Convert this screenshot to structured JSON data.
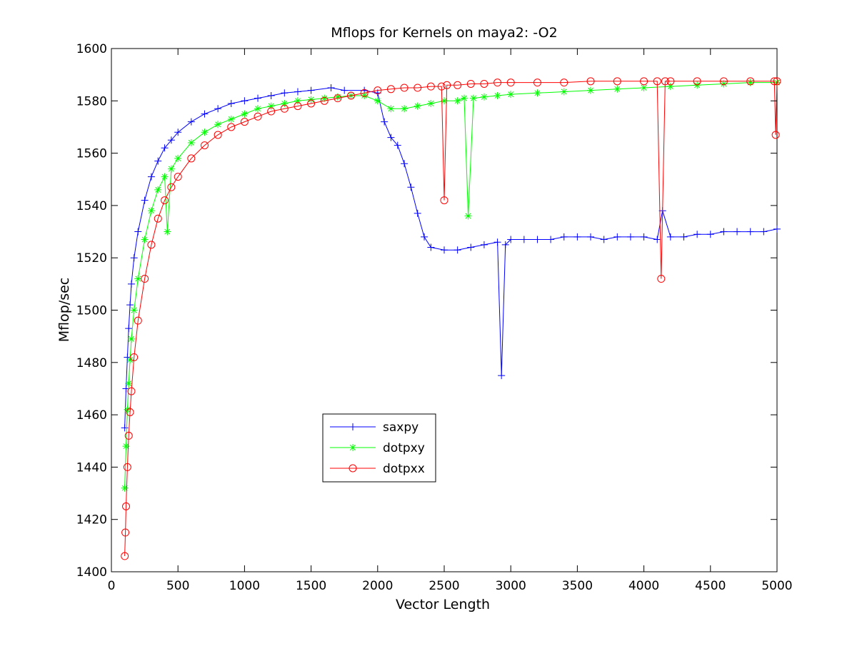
{
  "chart_data": {
    "type": "line",
    "title": "Mflops for Kernels on maya2: -O2",
    "xlabel": "Vector Length",
    "ylabel": "Mflop/sec",
    "xlim": [
      0,
      5000
    ],
    "ylim": [
      1400,
      1600
    ],
    "xticks": [
      0,
      500,
      1000,
      1500,
      2000,
      2500,
      3000,
      3500,
      4000,
      4500,
      5000
    ],
    "yticks": [
      1400,
      1420,
      1440,
      1460,
      1480,
      1500,
      1520,
      1540,
      1560,
      1580,
      1600
    ],
    "xtick_labels": [
      "0",
      "500",
      "1000",
      "1500",
      "2000",
      "2500",
      "3000",
      "3500",
      "4000",
      "4500",
      "5000"
    ],
    "ytick_labels": [
      "1400",
      "1420",
      "1440",
      "1460",
      "1480",
      "1500",
      "1520",
      "1540",
      "1560",
      "1580",
      "1600"
    ],
    "grid": false,
    "legend_position": "lower-middle-left",
    "series": [
      {
        "name": "saxpy",
        "color": "#0000ff",
        "marker": "plus",
        "x": [
          100,
          110,
          120,
          130,
          140,
          150,
          170,
          200,
          250,
          300,
          350,
          400,
          450,
          500,
          600,
          700,
          800,
          900,
          1000,
          1100,
          1200,
          1300,
          1400,
          1500,
          1650,
          1750,
          1900,
          2000,
          2050,
          2100,
          2150,
          2200,
          2250,
          2300,
          2350,
          2400,
          2500,
          2600,
          2700,
          2800,
          2900,
          2930,
          2960,
          3000,
          3100,
          3200,
          3300,
          3400,
          3500,
          3600,
          3700,
          3800,
          3900,
          4000,
          4100,
          4140,
          4200,
          4300,
          4400,
          4500,
          4600,
          4700,
          4800,
          4900,
          5000
        ],
        "y": [
          1455,
          1470,
          1482,
          1493,
          1502,
          1510,
          1520,
          1530,
          1542,
          1551,
          1557,
          1562,
          1565,
          1568,
          1572,
          1575,
          1577,
          1579,
          1580,
          1581,
          1582,
          1583,
          1583.5,
          1584,
          1585,
          1584,
          1584,
          1583,
          1572,
          1566,
          1563,
          1556,
          1547,
          1537,
          1528,
          1524,
          1523,
          1523,
          1524,
          1525,
          1526,
          1475,
          1525,
          1527,
          1527,
          1527,
          1527,
          1528,
          1528,
          1528,
          1527,
          1528,
          1528,
          1528,
          1527,
          1538,
          1528,
          1528,
          1529,
          1529,
          1530,
          1530,
          1530,
          1530,
          1531
        ]
      },
      {
        "name": "dotpxy",
        "color": "#00ff00",
        "marker": "asterisk",
        "x": [
          100,
          110,
          120,
          130,
          140,
          150,
          170,
          200,
          250,
          300,
          350,
          400,
          420,
          450,
          500,
          600,
          700,
          800,
          900,
          1000,
          1100,
          1200,
          1300,
          1400,
          1500,
          1600,
          1700,
          1800,
          1900,
          2000,
          2100,
          2200,
          2300,
          2400,
          2500,
          2600,
          2650,
          2680,
          2720,
          2800,
          2900,
          3000,
          3200,
          3400,
          3600,
          3800,
          4000,
          4200,
          4400,
          4600,
          4800,
          5000
        ],
        "y": [
          1432,
          1448,
          1462,
          1472,
          1481,
          1489,
          1500,
          1512,
          1527,
          1538,
          1546,
          1551,
          1530,
          1554,
          1558,
          1564,
          1568,
          1571,
          1573,
          1575,
          1577,
          1578,
          1579,
          1580,
          1580.5,
          1581,
          1581.5,
          1582,
          1582,
          1580,
          1577,
          1577,
          1578,
          1579,
          1580,
          1580,
          1581,
          1536,
          1581,
          1581.5,
          1582,
          1582.5,
          1583,
          1583.5,
          1584,
          1584.5,
          1585,
          1585.5,
          1586,
          1586.5,
          1587,
          1587
        ]
      },
      {
        "name": "dotpxx",
        "color": "#ff0000",
        "marker": "circle",
        "x": [
          100,
          105,
          110,
          120,
          130,
          140,
          150,
          170,
          200,
          250,
          300,
          350,
          400,
          450,
          500,
          600,
          700,
          800,
          900,
          1000,
          1100,
          1200,
          1300,
          1400,
          1500,
          1600,
          1700,
          1800,
          1900,
          2000,
          2100,
          2200,
          2300,
          2400,
          2480,
          2500,
          2520,
          2600,
          2700,
          2800,
          2900,
          3000,
          3200,
          3400,
          3600,
          3800,
          4000,
          4100,
          4130,
          4160,
          4200,
          4400,
          4600,
          4800,
          4980,
          4990,
          5000
        ],
        "y": [
          1406,
          1415,
          1425,
          1440,
          1452,
          1461,
          1469,
          1482,
          1496,
          1512,
          1525,
          1535,
          1542,
          1547,
          1551,
          1558,
          1563,
          1567,
          1570,
          1572,
          1574,
          1576,
          1577,
          1578,
          1579,
          1580,
          1581,
          1582,
          1583,
          1584,
          1584.5,
          1585,
          1585,
          1585.5,
          1585.5,
          1542,
          1586,
          1586,
          1586.5,
          1586.5,
          1587,
          1587,
          1587,
          1587,
          1587.5,
          1587.5,
          1587.5,
          1587.5,
          1512,
          1587.5,
          1587.5,
          1587.5,
          1587.5,
          1587.5,
          1587.5,
          1567,
          1587.5
        ]
      }
    ]
  }
}
